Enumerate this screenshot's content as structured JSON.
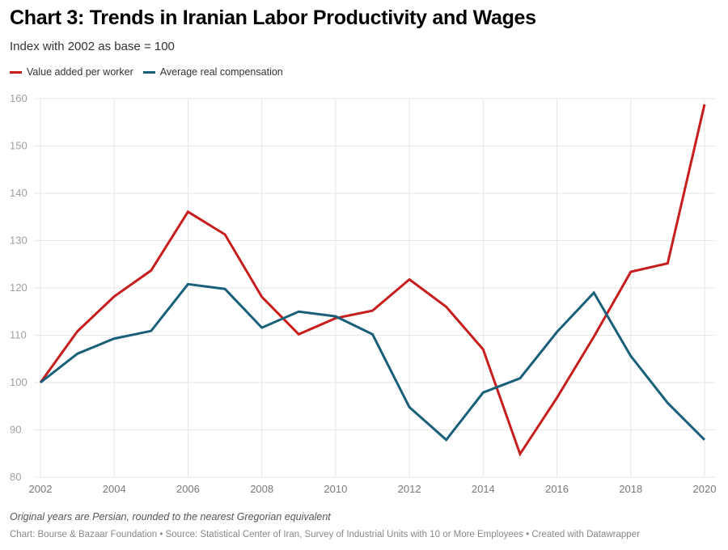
{
  "chart_data": {
    "type": "line",
    "title": "Chart 3: Trends in Iranian Labor Productivity and Wages",
    "subtitle": "Index with 2002 as base = 100",
    "xlabel": "",
    "ylabel": "",
    "x": [
      2002,
      2003,
      2004,
      2005,
      2006,
      2007,
      2008,
      2009,
      2010,
      2011,
      2012,
      2013,
      2014,
      2015,
      2016,
      2017,
      2018,
      2019,
      2020
    ],
    "xticks": [
      "2002",
      "2004",
      "2006",
      "2008",
      "2010",
      "2012",
      "2014",
      "2016",
      "2018",
      "2020"
    ],
    "yticks": [
      "80",
      "90",
      "100",
      "110",
      "120",
      "130",
      "140",
      "150",
      "160"
    ],
    "ylim": [
      80,
      160
    ],
    "xlim": [
      2002,
      2020
    ],
    "grid": true,
    "legend_position": "top-left",
    "series": [
      {
        "name": "Value added per worker",
        "color": "#c71e1d",
        "values": [
          100,
          110.8,
          118.2,
          123.7,
          136.1,
          131.3,
          118.1,
          110.2,
          113.6,
          115.2,
          121.8,
          116.0,
          107.0,
          84.9,
          96.8,
          109.7,
          123.4,
          125.2,
          158.8
        ]
      },
      {
        "name": "Average real compensation",
        "color": "#18607a",
        "values": [
          100,
          106.1,
          109.3,
          110.9,
          120.8,
          119.8,
          111.6,
          115.0,
          114.0,
          110.2,
          94.8,
          87.9,
          97.9,
          100.9,
          110.7,
          119.0,
          105.6,
          95.7,
          87.9
        ]
      }
    ]
  },
  "notes": "Original years are Persian, rounded to the nearest Gregorian equivalent",
  "footer": "Chart: Bourse & Bazaar Foundation • Source: Statistical Center of Iran, Survey of Industrial Units with 10 or More Employees • Created with Datawrapper"
}
